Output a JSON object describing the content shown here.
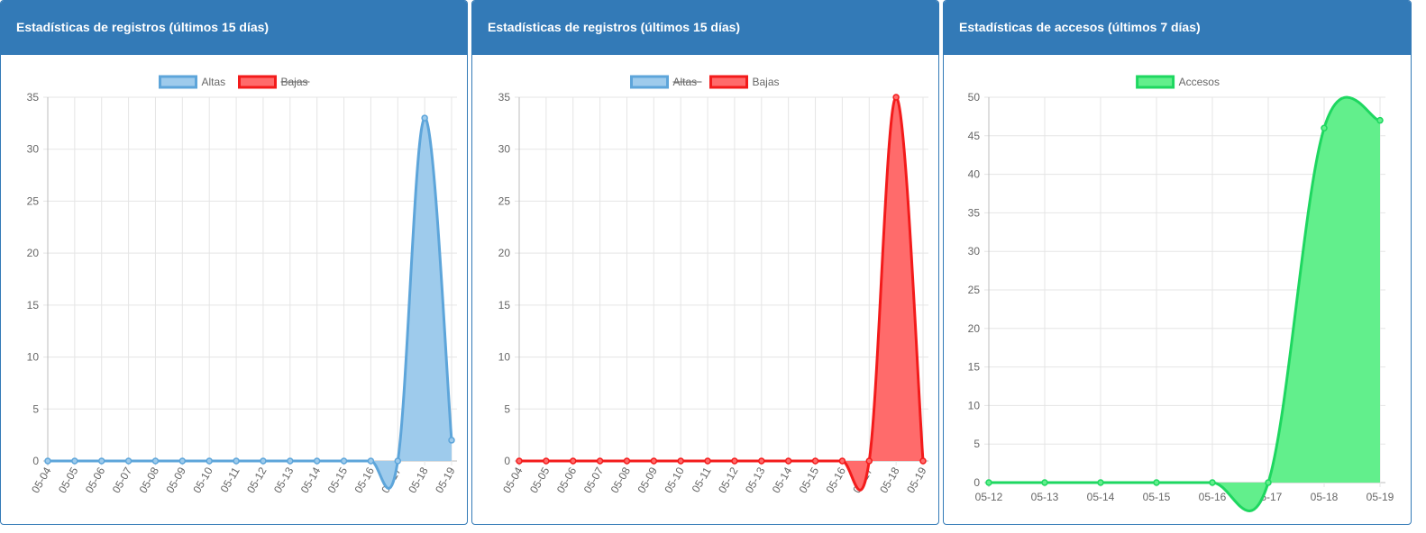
{
  "panels": [
    {
      "title": "Estadísticas de registros (últimos 15 días)"
    },
    {
      "title": "Estadísticas de registros (últimos 15 días)"
    },
    {
      "title": "Estadísticas de accesos (últimos 7 días)"
    }
  ],
  "chart_data": [
    {
      "type": "area",
      "title": "Estadísticas de registros (últimos 15 días)",
      "categories": [
        "05-04",
        "05-05",
        "05-06",
        "05-07",
        "05-08",
        "05-09",
        "05-10",
        "05-11",
        "05-12",
        "05-13",
        "05-14",
        "05-15",
        "05-16",
        "05-17",
        "05-18",
        "05-19"
      ],
      "series": [
        {
          "name": "Altas",
          "values": [
            0,
            0,
            0,
            0,
            0,
            0,
            0,
            0,
            0,
            0,
            0,
            0,
            0,
            0,
            33,
            2
          ],
          "color": "#5da5da",
          "fill": "#9ecbec",
          "hidden": false
        },
        {
          "name": "Bajas",
          "values": [
            0,
            0,
            0,
            0,
            0,
            0,
            0,
            0,
            0,
            0,
            0,
            0,
            0,
            0,
            35,
            0
          ],
          "color": "#f31b1b",
          "fill": "#ff6b6b",
          "hidden": true
        }
      ],
      "ylim": [
        0,
        35
      ],
      "yticks": [
        0,
        5,
        10,
        15,
        20,
        25,
        30,
        35
      ],
      "xlabel": "",
      "ylabel": "",
      "grid": true,
      "legend": "top-center",
      "x_labels_rotated": true
    },
    {
      "type": "area",
      "title": "Estadísticas de registros (últimos 15 días)",
      "categories": [
        "05-04",
        "05-05",
        "05-06",
        "05-07",
        "05-08",
        "05-09",
        "05-10",
        "05-11",
        "05-12",
        "05-13",
        "05-14",
        "05-15",
        "05-16",
        "05-17",
        "05-18",
        "05-19"
      ],
      "series": [
        {
          "name": "Altas",
          "values": [
            0,
            0,
            0,
            0,
            0,
            0,
            0,
            0,
            0,
            0,
            0,
            0,
            0,
            0,
            33,
            2
          ],
          "color": "#5da5da",
          "fill": "#9ecbec",
          "hidden": true
        },
        {
          "name": "Bajas",
          "values": [
            0,
            0,
            0,
            0,
            0,
            0,
            0,
            0,
            0,
            0,
            0,
            0,
            0,
            0,
            35,
            0
          ],
          "color": "#f31b1b",
          "fill": "#ff6b6b",
          "hidden": false
        }
      ],
      "ylim": [
        0,
        35
      ],
      "yticks": [
        0,
        5,
        10,
        15,
        20,
        25,
        30,
        35
      ],
      "xlabel": "",
      "ylabel": "",
      "grid": true,
      "legend": "top-center",
      "x_labels_rotated": true
    },
    {
      "type": "area",
      "title": "Estadísticas de accesos (últimos 7 días)",
      "categories": [
        "05-12",
        "05-13",
        "05-14",
        "05-15",
        "05-16",
        "05-17",
        "05-18",
        "05-19"
      ],
      "series": [
        {
          "name": "Accesos",
          "values": [
            0,
            0,
            0,
            0,
            0,
            0,
            46,
            47
          ],
          "color": "#1ed760",
          "fill": "#62ef8c",
          "hidden": false
        }
      ],
      "ylim": [
        0,
        50
      ],
      "yticks": [
        0,
        5,
        10,
        15,
        20,
        25,
        30,
        35,
        40,
        45,
        50
      ],
      "xlabel": "",
      "ylabel": "",
      "grid": true,
      "legend": "top-center",
      "x_labels_rotated": false
    }
  ]
}
